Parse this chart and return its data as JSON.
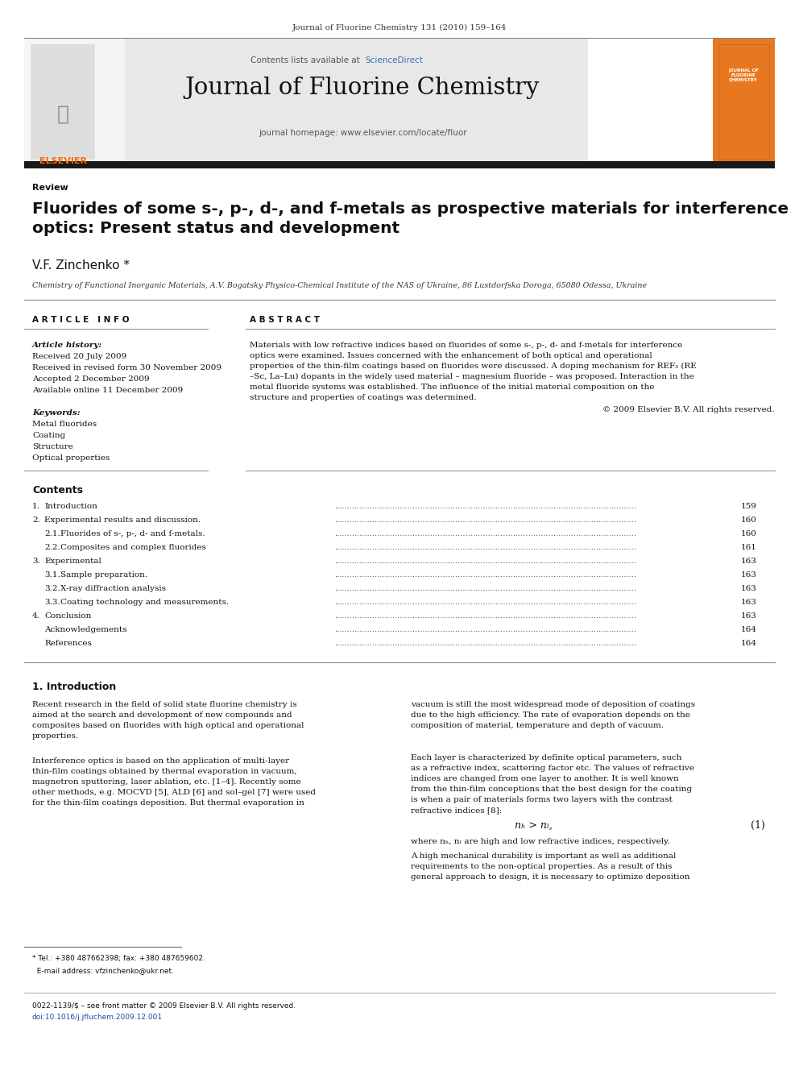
{
  "page_width": 9.92,
  "page_height": 13.23,
  "bg_color": "#ffffff",
  "header_journal_ref": "Journal of Fluorine Chemistry 131 (2010) 159–164",
  "journal_name": "Journal of Fluorine Chemistry",
  "sciencedirect_text": "Contents lists available at ScienceDirect",
  "sciencedirect_color": "#3b6fba",
  "journal_homepage": "journal homepage: www.elsevier.com/locate/fluor",
  "elsevier_color": "#ff6600",
  "header_bg": "#e8e8e8",
  "dark_bar_color": "#1a1a1a",
  "review_label": "Review",
  "article_title": "Fluorides of some s-, p-, d-, and f-metals as prospective materials for interference\noptics: Present status and development",
  "author": "V.F. Zinchenko",
  "affiliation": "Chemistry of Functional Inorganic Materials, A.V. Bogatsky Physico-Chemical Institute of the NAS of Ukraine, 86 Lustdorfska Doroga, 65080 Odessa, Ukraine",
  "article_info_label": "A R T I C L E   I N F O",
  "abstract_label": "A B S T R A C T",
  "article_history_label": "Article history:",
  "received_1": "Received 20 July 2009",
  "received_2": "Received in revised form 30 November 2009",
  "accepted": "Accepted 2 December 2009",
  "available": "Available online 11 December 2009",
  "keywords_label": "Keywords:",
  "keywords": [
    "Metal fluorides",
    "Coating",
    "Structure",
    "Optical properties"
  ],
  "abstract_text": "Materials with low refractive indices based on fluorides of some s-, p-, d- and f-metals for interference optics were examined. Issues concerned with the enhancement of both optical and operational properties of the thin-film coatings based on fluorides were discussed. A doping mechanism for REF₃ (RE –Sc, La–Lu) dopants in the widely used material – magnesium fluoride – was proposed. Interaction in the metal fluoride systems was established. The influence of the initial material composition on the structure and properties of coatings was determined.",
  "copyright_text": "© 2009 Elsevier B.V. All rights reserved.",
  "contents_label": "Contents",
  "contents_items": [
    [
      "1.",
      "Introduction",
      "159"
    ],
    [
      "2.",
      "Experimental results and discussion.",
      "160"
    ],
    [
      "2.1.",
      "Fluorides of s-, p-, d- and f-metals.",
      "160"
    ],
    [
      "2.2.",
      "Composites and complex fluorides",
      "161"
    ],
    [
      "3.",
      "Experimental",
      "163"
    ],
    [
      "3.1.",
      "Sample preparation.",
      "163"
    ],
    [
      "3.2.",
      "X-ray diffraction analysis",
      "163"
    ],
    [
      "3.3.",
      "Coating technology and measurements.",
      "163"
    ],
    [
      "4.",
      "Conclusion",
      "163"
    ],
    [
      "",
      "Acknowledgements",
      "164"
    ],
    [
      "",
      "References",
      "164"
    ]
  ],
  "intro_heading": "1. Introduction",
  "equation": "nₕ > nₗ,",
  "equation_number": "(1)",
  "equation_note": "where nₕ, nₗ are high and low refractive indices, respectively.",
  "footnote_tel": "Tel.: +380 487662398; fax: +380 487659602.",
  "footnote_email": "E-mail address: vfzinchenko@ukr.net.",
  "bottom_issn": "0022-1139/$ – see front matter © 2009 Elsevier B.V. All rights reserved.",
  "bottom_doi": "doi:10.1016/j.jfluchem.2009.12.001"
}
